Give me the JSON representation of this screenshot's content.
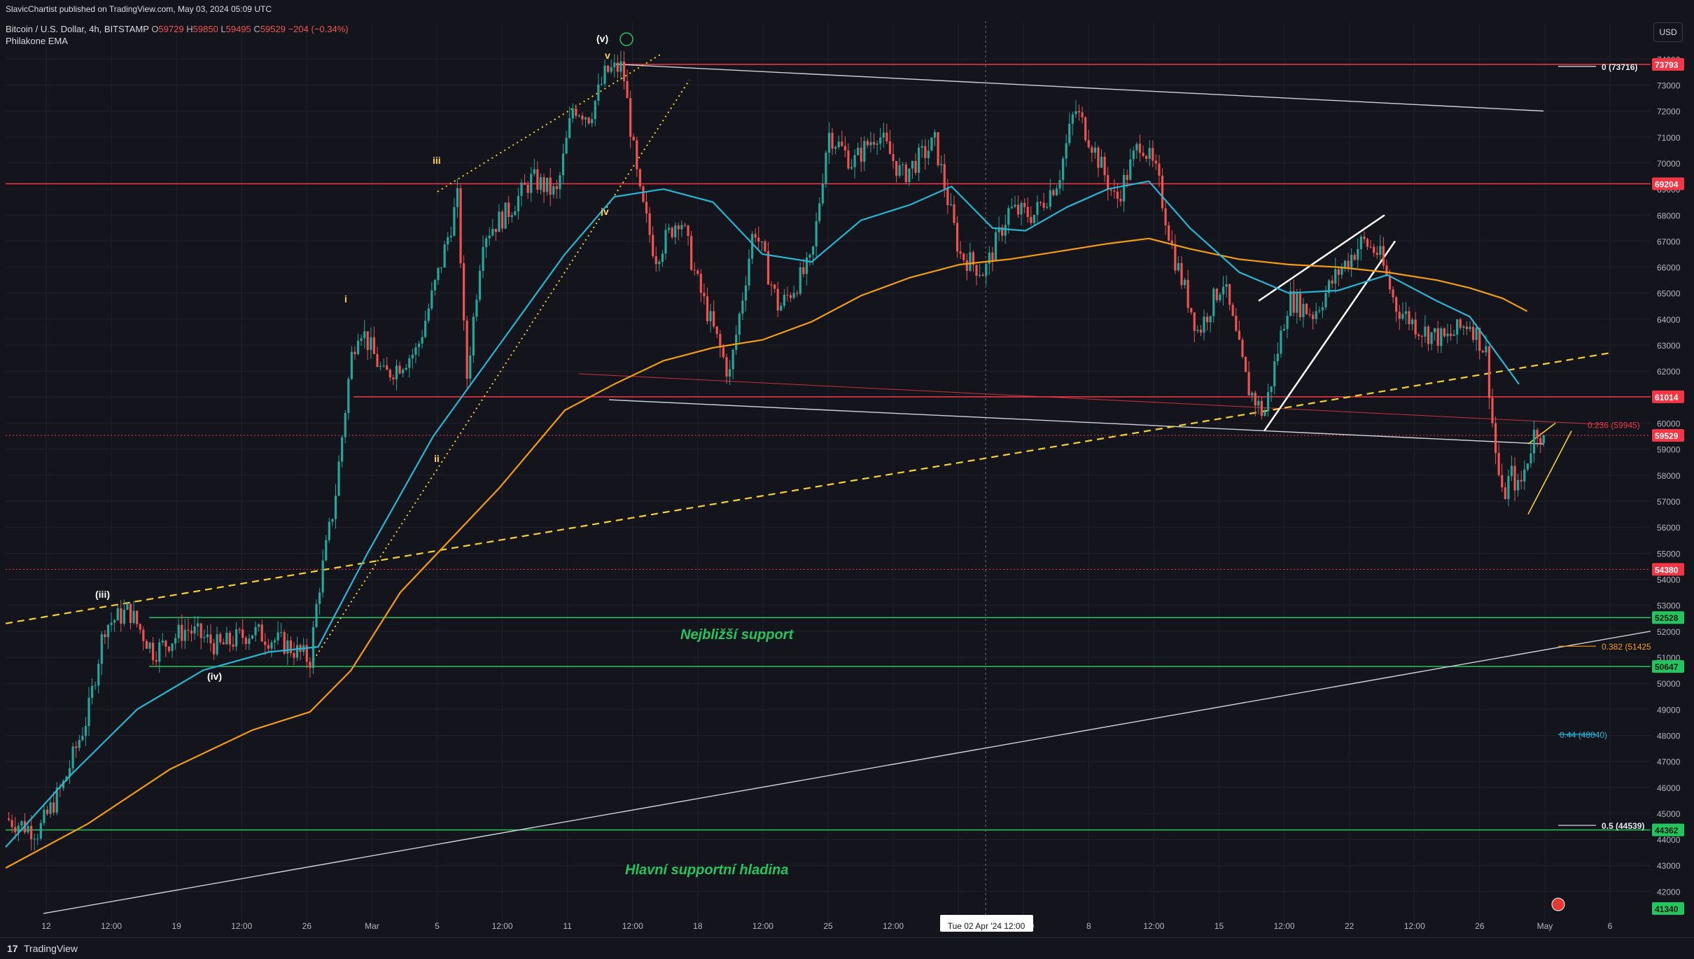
{
  "header": {
    "publisher": "SlavicChartist published on TradingView.com, May 03, 2024 05:09 UTC",
    "symbol": "Bitcoin / U.S. Dollar, 4h, BITSTAMP",
    "o_label": "O",
    "o": "59729",
    "h_label": "H",
    "h": "59850",
    "l_label": "L",
    "l": "59495",
    "c_label": "C",
    "c": "59529",
    "change": "−204 (−0.34%)",
    "indicator": "Philakone EMA"
  },
  "currency_button": "USD",
  "footer": {
    "logo": "17",
    "brand": "TradingView"
  },
  "colors": {
    "background": "#14151c",
    "grid": "#20222b",
    "candle_up": "#26a69a",
    "candle_down": "#ef5350",
    "ema_fast": "#26b6d4",
    "ema_slow": "#f39c12",
    "resistance": "#f23645",
    "support": "#22c55e",
    "wave_label": "#ffd166",
    "annotation_green": "#22c55e"
  },
  "chart_data": {
    "type": "candlestick",
    "timeframe": "4h",
    "x_tick_labels": [
      "12",
      "12:00",
      "19",
      "12:00",
      "26",
      "Mar",
      "5",
      "12:00",
      "11",
      "12:00",
      "18",
      "12:00",
      "25",
      "12:00",
      "Apr",
      "12:00",
      "8",
      "12:00",
      "15",
      "12:00",
      "22",
      "12:00",
      "26",
      "May",
      "6"
    ],
    "crosshair_date_label": "Tue 02 Apr '24   12:00",
    "y_range": [
      40800,
      74600
    ],
    "y_ticks": [
      42000,
      43000,
      44000,
      45000,
      46000,
      47000,
      48000,
      49000,
      50000,
      51000,
      52000,
      53000,
      54000,
      55000,
      56000,
      57000,
      58000,
      59000,
      60000,
      61000,
      62000,
      63000,
      64000,
      65000,
      66000,
      67000,
      68000,
      69000,
      70000,
      71000,
      72000,
      73000,
      74000
    ],
    "last_price": 59529,
    "price_path": [
      [
        0,
        44800
      ],
      [
        0.02,
        44300
      ],
      [
        0.035,
        46100
      ],
      [
        0.05,
        48800
      ],
      [
        0.06,
        52200
      ],
      [
        0.075,
        52800
      ],
      [
        0.09,
        51200
      ],
      [
        0.11,
        52100
      ],
      [
        0.13,
        51400
      ],
      [
        0.15,
        52000
      ],
      [
        0.17,
        51500
      ],
      [
        0.185,
        50900
      ],
      [
        0.19,
        53500
      ],
      [
        0.2,
        57000
      ],
      [
        0.21,
        62500
      ],
      [
        0.215,
        63800
      ],
      [
        0.23,
        61800
      ],
      [
        0.25,
        62800
      ],
      [
        0.265,
        66200
      ],
      [
        0.275,
        68700
      ],
      [
        0.28,
        61500
      ],
      [
        0.29,
        67200
      ],
      [
        0.305,
        68100
      ],
      [
        0.32,
        69400
      ],
      [
        0.335,
        68800
      ],
      [
        0.345,
        72200
      ],
      [
        0.355,
        71800
      ],
      [
        0.365,
        73500
      ],
      [
        0.375,
        73700
      ],
      [
        0.385,
        68900
      ],
      [
        0.395,
        66400
      ],
      [
        0.41,
        68000
      ],
      [
        0.42,
        65500
      ],
      [
        0.44,
        61800
      ],
      [
        0.455,
        67600
      ],
      [
        0.47,
        64400
      ],
      [
        0.49,
        66200
      ],
      [
        0.5,
        71200
      ],
      [
        0.515,
        70000
      ],
      [
        0.53,
        71200
      ],
      [
        0.545,
        69500
      ],
      [
        0.565,
        70800
      ],
      [
        0.58,
        66500
      ],
      [
        0.595,
        65800
      ],
      [
        0.61,
        68200
      ],
      [
        0.625,
        68000
      ],
      [
        0.64,
        69400
      ],
      [
        0.65,
        72100
      ],
      [
        0.66,
        70800
      ],
      [
        0.675,
        68500
      ],
      [
        0.69,
        70900
      ],
      [
        0.7,
        69500
      ],
      [
        0.71,
        66500
      ],
      [
        0.725,
        63500
      ],
      [
        0.74,
        65500
      ],
      [
        0.755,
        61400
      ],
      [
        0.765,
        60300
      ],
      [
        0.78,
        64800
      ],
      [
        0.795,
        64200
      ],
      [
        0.81,
        65800
      ],
      [
        0.825,
        67000
      ],
      [
        0.835,
        66500
      ],
      [
        0.845,
        64500
      ],
      [
        0.86,
        63600
      ],
      [
        0.875,
        63200
      ],
      [
        0.89,
        63900
      ],
      [
        0.9,
        62700
      ],
      [
        0.905,
        59200
      ],
      [
        0.91,
        57000
      ],
      [
        0.915,
        58100
      ],
      [
        0.92,
        57400
      ],
      [
        0.93,
        59800
      ],
      [
        0.935,
        59529
      ]
    ],
    "ema_fast_path": [
      [
        0,
        43700
      ],
      [
        0.04,
        46500
      ],
      [
        0.08,
        49000
      ],
      [
        0.12,
        50500
      ],
      [
        0.16,
        51200
      ],
      [
        0.19,
        51400
      ],
      [
        0.22,
        55000
      ],
      [
        0.26,
        59500
      ],
      [
        0.3,
        63000
      ],
      [
        0.34,
        66500
      ],
      [
        0.37,
        68700
      ],
      [
        0.4,
        69000
      ],
      [
        0.43,
        68500
      ],
      [
        0.46,
        66500
      ],
      [
        0.49,
        66200
      ],
      [
        0.52,
        67800
      ],
      [
        0.55,
        68400
      ],
      [
        0.575,
        69100
      ],
      [
        0.6,
        67500
      ],
      [
        0.62,
        67400
      ],
      [
        0.645,
        68300
      ],
      [
        0.67,
        69000
      ],
      [
        0.695,
        69300
      ],
      [
        0.72,
        67500
      ],
      [
        0.75,
        65800
      ],
      [
        0.78,
        65000
      ],
      [
        0.81,
        65100
      ],
      [
        0.84,
        65700
      ],
      [
        0.87,
        64700
      ],
      [
        0.89,
        64100
      ],
      [
        0.905,
        62800
      ],
      [
        0.92,
        61500
      ]
    ],
    "ema_slow_path": [
      [
        0,
        42900
      ],
      [
        0.05,
        44600
      ],
      [
        0.1,
        46700
      ],
      [
        0.15,
        48200
      ],
      [
        0.185,
        48900
      ],
      [
        0.21,
        50500
      ],
      [
        0.24,
        53500
      ],
      [
        0.27,
        55500
      ],
      [
        0.3,
        57500
      ],
      [
        0.34,
        60500
      ],
      [
        0.37,
        61500
      ],
      [
        0.4,
        62400
      ],
      [
        0.43,
        62900
      ],
      [
        0.46,
        63200
      ],
      [
        0.49,
        63900
      ],
      [
        0.52,
        64900
      ],
      [
        0.55,
        65600
      ],
      [
        0.58,
        66100
      ],
      [
        0.61,
        66300
      ],
      [
        0.64,
        66600
      ],
      [
        0.67,
        66900
      ],
      [
        0.695,
        67100
      ],
      [
        0.72,
        66700
      ],
      [
        0.75,
        66300
      ],
      [
        0.78,
        66100
      ],
      [
        0.81,
        66000
      ],
      [
        0.84,
        65800
      ],
      [
        0.87,
        65500
      ],
      [
        0.89,
        65200
      ],
      [
        0.91,
        64800
      ],
      [
        0.925,
        64300
      ]
    ],
    "price_labels": [
      "73793",
      "69204",
      "61014",
      "59529",
      "54380",
      "52528",
      "50647",
      "44362",
      "41340"
    ],
    "horizontal_levels": [
      {
        "price": 73793,
        "kind": "resistance"
      },
      {
        "price": 69204,
        "kind": "resistance"
      },
      {
        "price": 61014,
        "kind": "resistance"
      },
      {
        "price": 59529,
        "kind": "last"
      },
      {
        "price": 54380,
        "kind": "dotted"
      },
      {
        "price": 52528,
        "kind": "support"
      },
      {
        "price": 50647,
        "kind": "support"
      },
      {
        "price": 44362,
        "kind": "support"
      }
    ],
    "fibonacci_levels": [
      {
        "label": "0 (73716)",
        "price": 73716
      },
      {
        "label": "0.236 (59945)",
        "price": 59945
      },
      {
        "label": "0.382 (51425)",
        "price": 51425
      },
      {
        "label": "0.44 (48040)",
        "price": 48040
      },
      {
        "label": "0.5 (44539)",
        "price": 44539
      }
    ],
    "wave_labels": [
      "(v)",
      "v",
      "iii",
      "iv",
      "i",
      "ii",
      "(iii)",
      "(iv)"
    ],
    "annotations": [
      "Nejbližší support",
      "Hlavní supportní hladina"
    ]
  }
}
